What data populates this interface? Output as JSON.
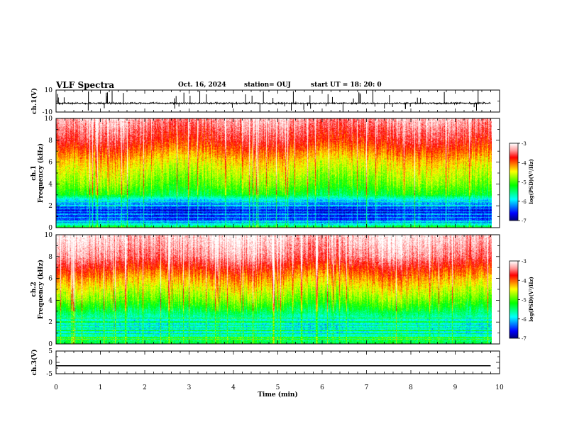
{
  "header": {
    "title": "VLF Spectra",
    "date": "Oct. 16, 2024",
    "station": "station= OUJ",
    "start": "start  UT =   18: 20: 0"
  },
  "chart_data": [
    {
      "type": "line",
      "panel": "ch1-waveform",
      "ylabel": "ch.1(V)",
      "ylim": [
        -10,
        10
      ],
      "yticks": [
        "10",
        "-10"
      ],
      "xlim": [
        0,
        10
      ],
      "baseline": -2,
      "series": [
        {
          "values_summary": "noisy waveform near -2 V with spikes to about +10 V and -10 V"
        }
      ]
    },
    {
      "type": "heatmap",
      "panel": "ch1-spectrogram",
      "ylabel": "ch.1\nFrequency (kHz)",
      "ylim": [
        0,
        10
      ],
      "yticks": [
        "0",
        "2",
        "4",
        "6",
        "8",
        "10"
      ],
      "xlim": [
        0,
        9.8
      ],
      "colorbar": {
        "label": "log(PSD)(V²/Hz)",
        "range": [
          -7,
          -3
        ],
        "ticks": [
          "-3",
          "-4",
          "-5",
          "-6",
          "-7"
        ]
      },
      "profile_khz_logpsd": [
        [
          0,
          -5.2
        ],
        [
          0.5,
          -6.4
        ],
        [
          1.5,
          -6.7
        ],
        [
          2.5,
          -6.0
        ],
        [
          3,
          -5.3
        ],
        [
          4,
          -4.9
        ],
        [
          6,
          -4.4
        ],
        [
          8,
          -3.7
        ],
        [
          10,
          -3.3
        ]
      ]
    },
    {
      "type": "heatmap",
      "panel": "ch2-spectrogram",
      "ylabel": "ch.2\nFrequency (kHz)",
      "ylim": [
        0,
        10
      ],
      "yticks": [
        "0",
        "2",
        "4",
        "6",
        "8",
        "10"
      ],
      "xlim": [
        0,
        9.8
      ],
      "colorbar": {
        "label": "log(PSD)(V²/Hz)",
        "range": [
          -7,
          -3
        ],
        "ticks": [
          "-3",
          "-4",
          "-5",
          "-6",
          "-7"
        ]
      },
      "profile_khz_logpsd": [
        [
          0,
          -5.3
        ],
        [
          1,
          -5.9
        ],
        [
          2,
          -5.9
        ],
        [
          3,
          -5.4
        ],
        [
          4,
          -4.9
        ],
        [
          6,
          -4.2
        ],
        [
          8,
          -3.4
        ],
        [
          10,
          -3.1
        ]
      ]
    },
    {
      "type": "line",
      "panel": "ch3-waveform",
      "ylabel": "ch.3(V)",
      "ylim": [
        -5,
        5
      ],
      "yticks": [
        "5",
        "0",
        "-5"
      ],
      "xlim": [
        0,
        10
      ],
      "series": [
        {
          "values": [
            -1.5,
            -1.5
          ],
          "x": [
            0,
            9.8
          ]
        }
      ]
    }
  ],
  "xaxis": {
    "label": "Time (min)",
    "ticks": [
      "0",
      "1",
      "2",
      "3",
      "4",
      "5",
      "6",
      "7",
      "8",
      "9",
      "10"
    ]
  },
  "colors": {
    "frame": "#000000",
    "waveform": "#000000",
    "colormap": [
      "#00007f",
      "#0000ff",
      "#0080ff",
      "#00ffff",
      "#00ff80",
      "#00ff00",
      "#80ff00",
      "#ffff00",
      "#ff8000",
      "#ff0000",
      "#ff9999",
      "#ffffff"
    ]
  }
}
